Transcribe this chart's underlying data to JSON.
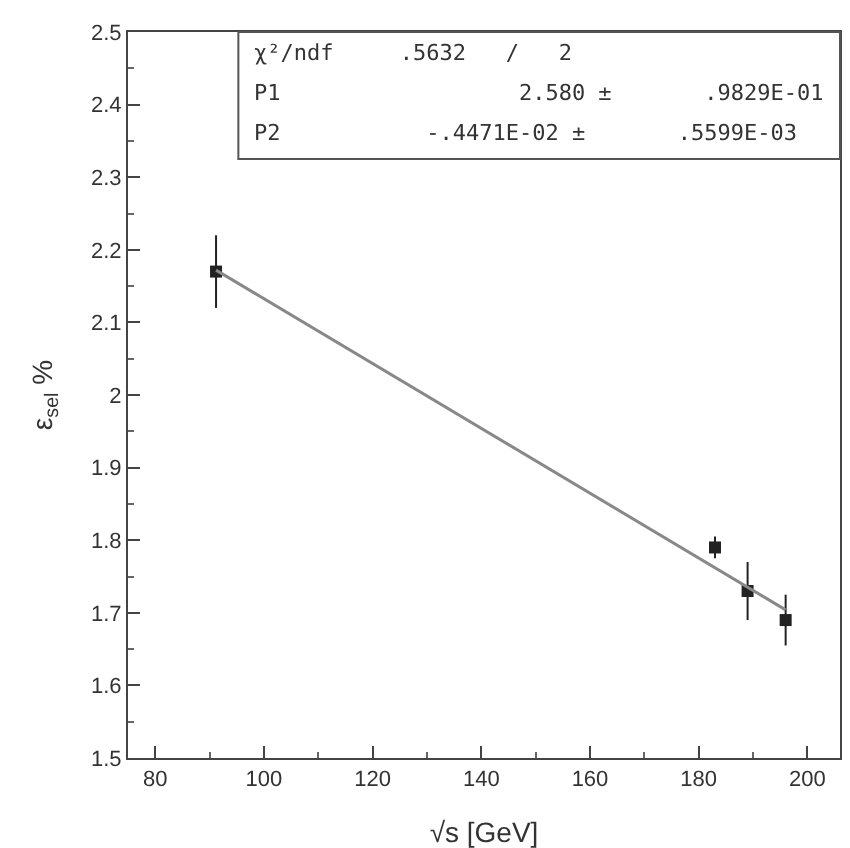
{
  "chart_data": {
    "type": "scatter",
    "xlabel": "√s [GeV]",
    "ylabel": "ε$_{sel}$ %",
    "xlim": [
      75,
      206
    ],
    "xticks": [
      80,
      100,
      120,
      140,
      160,
      180,
      200
    ],
    "ylim": [
      1.5,
      2.5
    ],
    "yticks": [
      1.5,
      1.6,
      1.7,
      1.8,
      1.9,
      2,
      2.1,
      2.2,
      2.3,
      2.4,
      2.5
    ],
    "grid": false,
    "series": [
      {
        "marker": "square",
        "color": "#222222",
        "x": [
          91.2,
          183,
          189,
          196
        ],
        "values": [
          2.17,
          1.79,
          1.73,
          1.69
        ],
        "errors": [
          0.05,
          0.015,
          0.04,
          0.035
        ]
      },
      {
        "type": "line",
        "color": "#888888",
        "x": [
          91.2,
          196
        ],
        "values": [
          2.172,
          1.704
        ]
      }
    ],
    "annotations": [
      "χ²/ndf     .5632   /   2",
      "P1                  2.580 ±       .9829E-01",
      "P2           -.4471E-02 ±       .5599E-03"
    ]
  }
}
